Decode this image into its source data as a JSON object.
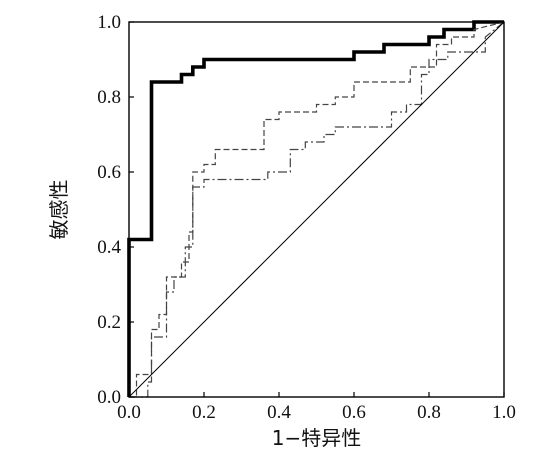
{
  "chart_data": {
    "type": "line",
    "title": "",
    "xlabel": "1−特异性",
    "ylabel": "敏感性",
    "xlim": [
      0,
      1
    ],
    "ylim": [
      0,
      1
    ],
    "xticks": [
      "0.0",
      "0.2",
      "0.4",
      "0.6",
      "0.8",
      "1.0"
    ],
    "yticks": [
      "0.0",
      "0.2",
      "0.4",
      "0.6",
      "0.8",
      "1.0"
    ],
    "grid": false,
    "legend": "none",
    "series": [
      {
        "style": "bold-solid",
        "color": "#000000",
        "points": [
          [
            0,
            0
          ],
          [
            0,
            0.42
          ],
          [
            0.06,
            0.42
          ],
          [
            0.06,
            0.84
          ],
          [
            0.14,
            0.84
          ],
          [
            0.14,
            0.86
          ],
          [
            0.17,
            0.86
          ],
          [
            0.17,
            0.88
          ],
          [
            0.2,
            0.88
          ],
          [
            0.2,
            0.9
          ],
          [
            0.6,
            0.9
          ],
          [
            0.6,
            0.92
          ],
          [
            0.68,
            0.92
          ],
          [
            0.68,
            0.94
          ],
          [
            0.8,
            0.94
          ],
          [
            0.8,
            0.96
          ],
          [
            0.84,
            0.96
          ],
          [
            0.84,
            0.98
          ],
          [
            0.92,
            0.98
          ],
          [
            0.92,
            1.0
          ],
          [
            1.0,
            1.0
          ]
        ]
      },
      {
        "style": "dashed",
        "color": "#444444",
        "points": [
          [
            0,
            0
          ],
          [
            0.02,
            0
          ],
          [
            0.02,
            0.06
          ],
          [
            0.06,
            0.06
          ],
          [
            0.06,
            0.18
          ],
          [
            0.08,
            0.18
          ],
          [
            0.08,
            0.22
          ],
          [
            0.1,
            0.22
          ],
          [
            0.1,
            0.32
          ],
          [
            0.14,
            0.32
          ],
          [
            0.14,
            0.36
          ],
          [
            0.16,
            0.36
          ],
          [
            0.16,
            0.44
          ],
          [
            0.17,
            0.44
          ],
          [
            0.17,
            0.6
          ],
          [
            0.2,
            0.6
          ],
          [
            0.2,
            0.62
          ],
          [
            0.23,
            0.62
          ],
          [
            0.23,
            0.66
          ],
          [
            0.36,
            0.66
          ],
          [
            0.36,
            0.74
          ],
          [
            0.4,
            0.74
          ],
          [
            0.4,
            0.76
          ],
          [
            0.5,
            0.76
          ],
          [
            0.5,
            0.78
          ],
          [
            0.55,
            0.78
          ],
          [
            0.55,
            0.8
          ],
          [
            0.6,
            0.8
          ],
          [
            0.6,
            0.84
          ],
          [
            0.75,
            0.84
          ],
          [
            0.75,
            0.88
          ],
          [
            0.82,
            0.88
          ],
          [
            0.82,
            0.94
          ],
          [
            0.86,
            0.94
          ],
          [
            0.86,
            0.96
          ],
          [
            0.92,
            0.96
          ],
          [
            0.92,
            0.98
          ],
          [
            1.0,
            1.0
          ]
        ]
      },
      {
        "style": "dash-dot",
        "color": "#444444",
        "points": [
          [
            0,
            0
          ],
          [
            0.05,
            0
          ],
          [
            0.05,
            0.04
          ],
          [
            0.06,
            0.04
          ],
          [
            0.06,
            0.16
          ],
          [
            0.1,
            0.16
          ],
          [
            0.1,
            0.28
          ],
          [
            0.12,
            0.28
          ],
          [
            0.12,
            0.32
          ],
          [
            0.15,
            0.32
          ],
          [
            0.15,
            0.4
          ],
          [
            0.17,
            0.4
          ],
          [
            0.17,
            0.56
          ],
          [
            0.2,
            0.56
          ],
          [
            0.2,
            0.58
          ],
          [
            0.37,
            0.58
          ],
          [
            0.37,
            0.6
          ],
          [
            0.43,
            0.6
          ],
          [
            0.43,
            0.66
          ],
          [
            0.47,
            0.66
          ],
          [
            0.47,
            0.68
          ],
          [
            0.52,
            0.68
          ],
          [
            0.52,
            0.7
          ],
          [
            0.55,
            0.7
          ],
          [
            0.55,
            0.72
          ],
          [
            0.7,
            0.72
          ],
          [
            0.7,
            0.76
          ],
          [
            0.74,
            0.76
          ],
          [
            0.74,
            0.78
          ],
          [
            0.78,
            0.78
          ],
          [
            0.78,
            0.86
          ],
          [
            0.8,
            0.86
          ],
          [
            0.8,
            0.9
          ],
          [
            0.85,
            0.9
          ],
          [
            0.85,
            0.92
          ],
          [
            0.95,
            0.92
          ],
          [
            0.95,
            0.96
          ],
          [
            1.0,
            1.0
          ]
        ]
      },
      {
        "style": "reference",
        "color": "#000000",
        "points": [
          [
            0,
            0
          ],
          [
            1,
            1
          ]
        ]
      }
    ]
  }
}
